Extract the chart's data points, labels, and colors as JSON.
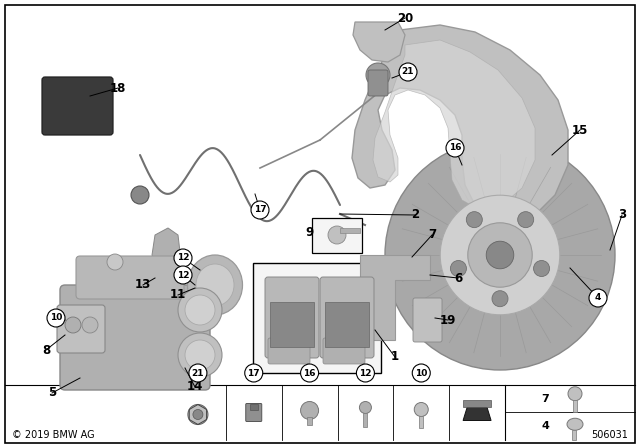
{
  "bg_color": "#ffffff",
  "copyright": "© 2019 BMW AG",
  "part_number": "506031",
  "fig_w": 6.4,
  "fig_h": 4.48,
  "dpi": 100
}
